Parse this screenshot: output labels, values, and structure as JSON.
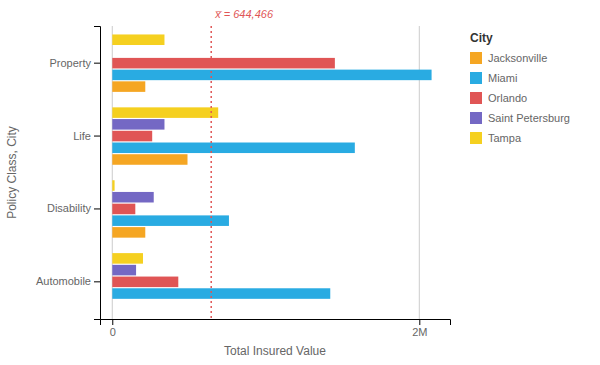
{
  "chart_data": {
    "type": "bar",
    "orientation": "horizontal",
    "categories": [
      "Automobile",
      "Disability",
      "Life",
      "Property"
    ],
    "series": [
      {
        "name": "Jacksonville",
        "color": "#F5A623",
        "values": [
          0,
          215000,
          490000,
          215000
        ]
      },
      {
        "name": "Miami",
        "color": "#29ABE2",
        "values": [
          1420000,
          760000,
          1580000,
          2080000
        ]
      },
      {
        "name": "Orlando",
        "color": "#E05555",
        "values": [
          430000,
          150000,
          260000,
          1450000
        ]
      },
      {
        "name": "Saint Petersburg",
        "color": "#7468C4",
        "values": [
          155000,
          270000,
          340000,
          0
        ]
      },
      {
        "name": "Tampa",
        "color": "#F5D020",
        "values": [
          200000,
          15000,
          690000,
          340000
        ]
      }
    ],
    "x_label": "Total Insured Value",
    "y_label": "Policy Class, City",
    "xlim": [
      -80000,
      2200000
    ],
    "xticks": [
      0,
      {
        "value": 2000000,
        "label": "2M"
      }
    ],
    "grid": true,
    "legend": "right",
    "legend_title": "City",
    "annotations": [
      {
        "label": "x̅ = 644,466",
        "value": 644466,
        "color": "#E05555"
      }
    ]
  }
}
